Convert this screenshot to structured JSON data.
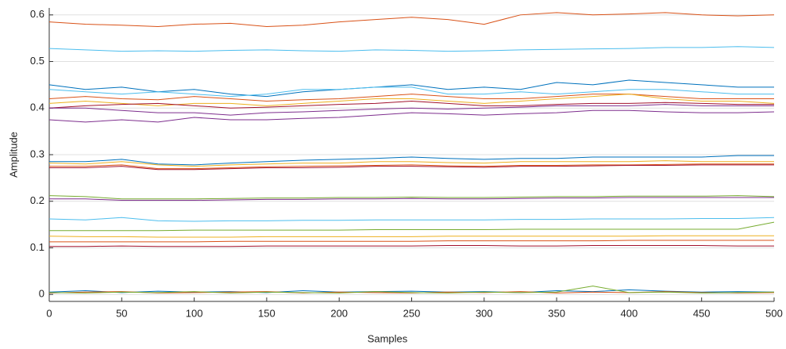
{
  "chart_data": {
    "type": "line",
    "xlabel": "Samples",
    "ylabel": "Amplitude",
    "x": [
      0,
      25,
      50,
      75,
      100,
      125,
      150,
      175,
      200,
      225,
      250,
      275,
      300,
      325,
      350,
      375,
      400,
      425,
      450,
      475,
      500
    ],
    "xlim": [
      0,
      500
    ],
    "xticks": [
      0,
      50,
      100,
      150,
      200,
      250,
      300,
      350,
      400,
      450,
      500
    ],
    "ylim": [
      -0.015,
      0.615
    ],
    "yticks": [
      0,
      0.1,
      0.2,
      0.3,
      0.4,
      0.5,
      0.6
    ],
    "grid": true,
    "series": [
      {
        "color": "#D95319",
        "values": [
          0.585,
          0.58,
          0.578,
          0.575,
          0.58,
          0.582,
          0.575,
          0.578,
          0.585,
          0.59,
          0.595,
          0.59,
          0.58,
          0.6,
          0.605,
          0.6,
          0.602,
          0.605,
          0.6,
          0.598,
          0.6
        ]
      },
      {
        "color": "#4DBEEE",
        "values": [
          0.528,
          0.525,
          0.522,
          0.523,
          0.522,
          0.524,
          0.525,
          0.523,
          0.522,
          0.525,
          0.524,
          0.522,
          0.523,
          0.525,
          0.526,
          0.527,
          0.528,
          0.53,
          0.53,
          0.532,
          0.53
        ]
      },
      {
        "color": "#0072BD",
        "values": [
          0.45,
          0.44,
          0.445,
          0.435,
          0.44,
          0.43,
          0.425,
          0.435,
          0.44,
          0.445,
          0.45,
          0.44,
          0.445,
          0.44,
          0.455,
          0.45,
          0.46,
          0.455,
          0.45,
          0.445,
          0.445
        ]
      },
      {
        "color": "#4DBEEE",
        "values": [
          0.44,
          0.435,
          0.43,
          0.435,
          0.43,
          0.425,
          0.43,
          0.44,
          0.44,
          0.445,
          0.445,
          0.43,
          0.43,
          0.435,
          0.43,
          0.435,
          0.44,
          0.44,
          0.435,
          0.43,
          0.43
        ]
      },
      {
        "color": "#D95319",
        "values": [
          0.42,
          0.425,
          0.42,
          0.418,
          0.425,
          0.42,
          0.415,
          0.418,
          0.42,
          0.425,
          0.43,
          0.425,
          0.42,
          0.42,
          0.425,
          0.43,
          0.43,
          0.425,
          0.42,
          0.42,
          0.42
        ]
      },
      {
        "color": "#EDB120",
        "values": [
          0.41,
          0.415,
          0.41,
          0.405,
          0.41,
          0.41,
          0.405,
          0.41,
          0.415,
          0.42,
          0.42,
          0.415,
          0.41,
          0.415,
          0.42,
          0.425,
          0.43,
          0.42,
          0.415,
          0.415,
          0.41
        ]
      },
      {
        "color": "#A2142F",
        "values": [
          0.4,
          0.405,
          0.408,
          0.41,
          0.405,
          0.4,
          0.402,
          0.405,
          0.408,
          0.41,
          0.415,
          0.41,
          0.405,
          0.405,
          0.408,
          0.41,
          0.41,
          0.412,
          0.41,
          0.408,
          0.408
        ]
      },
      {
        "color": "#7E2F8E",
        "values": [
          0.4,
          0.4,
          0.395,
          0.39,
          0.39,
          0.385,
          0.39,
          0.392,
          0.395,
          0.398,
          0.4,
          0.398,
          0.4,
          0.402,
          0.405,
          0.405,
          0.405,
          0.408,
          0.405,
          0.405,
          0.405
        ]
      },
      {
        "color": "#7E2F8E",
        "values": [
          0.375,
          0.37,
          0.375,
          0.37,
          0.38,
          0.375,
          0.375,
          0.378,
          0.38,
          0.385,
          0.39,
          0.388,
          0.385,
          0.388,
          0.39,
          0.395,
          0.395,
          0.392,
          0.39,
          0.39,
          0.392
        ]
      },
      {
        "color": "#0072BD",
        "values": [
          0.285,
          0.285,
          0.29,
          0.28,
          0.278,
          0.282,
          0.285,
          0.288,
          0.29,
          0.292,
          0.295,
          0.292,
          0.29,
          0.292,
          0.292,
          0.295,
          0.295,
          0.295,
          0.295,
          0.298,
          0.298
        ]
      },
      {
        "color": "#EDB120",
        "values": [
          0.282,
          0.28,
          0.285,
          0.278,
          0.275,
          0.278,
          0.28,
          0.282,
          0.282,
          0.285,
          0.285,
          0.283,
          0.282,
          0.285,
          0.285,
          0.285,
          0.285,
          0.287,
          0.285,
          0.285,
          0.285
        ]
      },
      {
        "color": "#D95319",
        "values": [
          0.275,
          0.275,
          0.278,
          0.27,
          0.27,
          0.272,
          0.274,
          0.275,
          0.276,
          0.277,
          0.278,
          0.276,
          0.275,
          0.277,
          0.277,
          0.278,
          0.278,
          0.279,
          0.28,
          0.28,
          0.28
        ]
      },
      {
        "color": "#A2142F",
        "values": [
          0.272,
          0.272,
          0.275,
          0.268,
          0.268,
          0.27,
          0.272,
          0.272,
          0.273,
          0.275,
          0.275,
          0.274,
          0.273,
          0.275,
          0.275,
          0.276,
          0.277,
          0.277,
          0.278,
          0.278,
          0.278
        ]
      },
      {
        "color": "#77AC30",
        "values": [
          0.212,
          0.21,
          0.205,
          0.205,
          0.205,
          0.206,
          0.207,
          0.207,
          0.208,
          0.208,
          0.209,
          0.208,
          0.208,
          0.209,
          0.21,
          0.21,
          0.211,
          0.211,
          0.211,
          0.212,
          0.21
        ]
      },
      {
        "color": "#7E2F8E",
        "values": [
          0.205,
          0.205,
          0.202,
          0.202,
          0.202,
          0.203,
          0.204,
          0.204,
          0.205,
          0.205,
          0.206,
          0.205,
          0.205,
          0.206,
          0.207,
          0.207,
          0.208,
          0.208,
          0.208,
          0.208,
          0.208
        ]
      },
      {
        "color": "#4DBEEE",
        "values": [
          0.162,
          0.16,
          0.165,
          0.158,
          0.157,
          0.158,
          0.158,
          0.159,
          0.159,
          0.16,
          0.16,
          0.16,
          0.16,
          0.161,
          0.161,
          0.162,
          0.162,
          0.162,
          0.163,
          0.163,
          0.165
        ]
      },
      {
        "color": "#77AC30",
        "values": [
          0.137,
          0.137,
          0.137,
          0.137,
          0.138,
          0.138,
          0.138,
          0.138,
          0.138,
          0.139,
          0.139,
          0.139,
          0.139,
          0.14,
          0.14,
          0.14,
          0.14,
          0.14,
          0.14,
          0.14,
          0.155
        ]
      },
      {
        "color": "#EDB120",
        "values": [
          0.125,
          0.124,
          0.124,
          0.123,
          0.123,
          0.123,
          0.124,
          0.124,
          0.124,
          0.124,
          0.124,
          0.125,
          0.125,
          0.125,
          0.125,
          0.125,
          0.125,
          0.126,
          0.126,
          0.126,
          0.126
        ]
      },
      {
        "color": "#D95319",
        "values": [
          0.113,
          0.113,
          0.113,
          0.113,
          0.113,
          0.114,
          0.114,
          0.114,
          0.114,
          0.114,
          0.114,
          0.115,
          0.115,
          0.115,
          0.115,
          0.115,
          0.116,
          0.116,
          0.116,
          0.116,
          0.116
        ]
      },
      {
        "color": "#A2142F",
        "values": [
          0.103,
          0.103,
          0.104,
          0.103,
          0.103,
          0.103,
          0.104,
          0.104,
          0.104,
          0.104,
          0.104,
          0.105,
          0.105,
          0.104,
          0.104,
          0.105,
          0.105,
          0.105,
          0.105,
          0.104,
          0.104
        ]
      },
      {
        "color": "#0072BD",
        "values": [
          0.005,
          0.008,
          0.004,
          0.007,
          0.005,
          0.006,
          0.004,
          0.008,
          0.005,
          0.006,
          0.007,
          0.005,
          0.006,
          0.004,
          0.008,
          0.006,
          0.01,
          0.007,
          0.005,
          0.006,
          0.005
        ]
      },
      {
        "color": "#D95319",
        "values": [
          0.003,
          0.005,
          0.006,
          0.003,
          0.004,
          0.005,
          0.006,
          0.003,
          0.005,
          0.004,
          0.003,
          0.005,
          0.004,
          0.006,
          0.003,
          0.005,
          0.004,
          0.006,
          0.004,
          0.003,
          0.004
        ]
      },
      {
        "color": "#77AC30",
        "values": [
          0.004,
          0.003,
          0.005,
          0.004,
          0.006,
          0.003,
          0.005,
          0.004,
          0.003,
          0.006,
          0.004,
          0.003,
          0.005,
          0.004,
          0.005,
          0.018,
          0.004,
          0.005,
          0.003,
          0.004,
          0.005
        ]
      }
    ]
  }
}
